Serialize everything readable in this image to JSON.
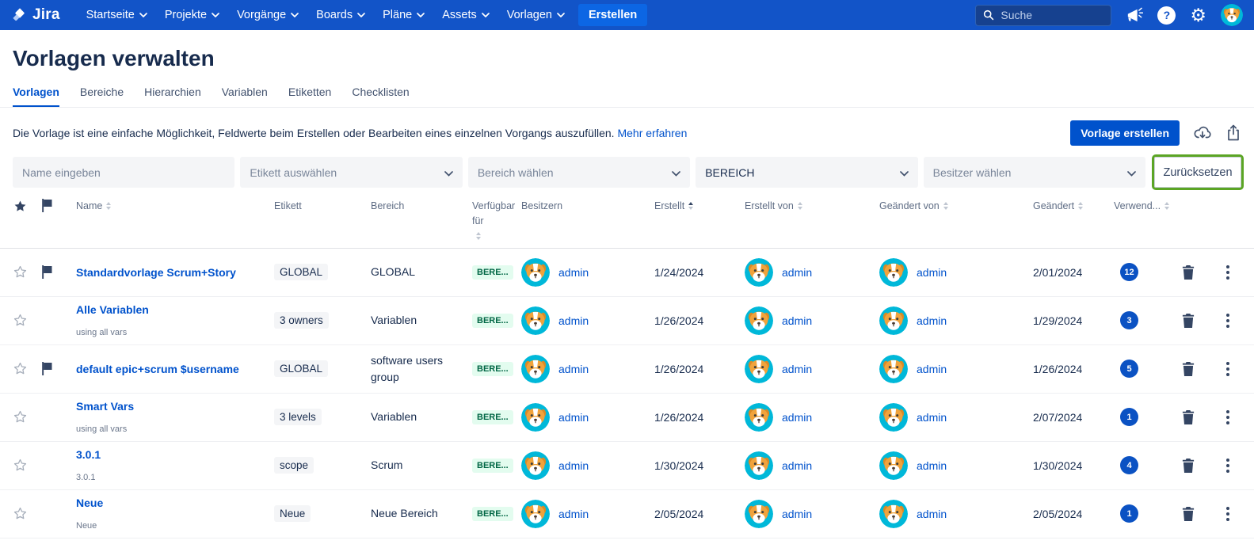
{
  "navbar": {
    "brand": "Jira",
    "items": [
      {
        "id": "startseite",
        "label": "Startseite"
      },
      {
        "id": "projekte",
        "label": "Projekte"
      },
      {
        "id": "vorgaenge",
        "label": "Vorgänge"
      },
      {
        "id": "boards",
        "label": "Boards"
      },
      {
        "id": "plaene",
        "label": "Pläne"
      },
      {
        "id": "assets",
        "label": "Assets"
      },
      {
        "id": "vorlagen",
        "label": "Vorlagen"
      }
    ],
    "create_label": "Erstellen",
    "search_placeholder": "Suche",
    "help_glyph": "?",
    "gear_glyph": "⚙"
  },
  "page": {
    "title": "Vorlagen verwalten",
    "tabs": [
      {
        "id": "vorlagen",
        "label": "Vorlagen",
        "active": true
      },
      {
        "id": "bereiche",
        "label": "Bereiche",
        "active": false
      },
      {
        "id": "hierarchien",
        "label": "Hierarchien",
        "active": false
      },
      {
        "id": "variablen",
        "label": "Variablen",
        "active": false
      },
      {
        "id": "etiketten",
        "label": "Etiketten",
        "active": false
      },
      {
        "id": "checklisten",
        "label": "Checklisten",
        "active": false
      }
    ],
    "description": "Die Vorlage ist eine einfache Möglichkeit, Feldwerte beim Erstellen oder Bearbeiten eines einzelnen Vorgangs auszufüllen.",
    "learn_more": "Mehr erfahren",
    "create_template_button": "Vorlage erstellen"
  },
  "filters": {
    "name_placeholder": "Name eingeben",
    "label_select": "Etikett auswählen",
    "area_select": "Bereich wählen",
    "scope_select": "BEREICH",
    "owner_select": "Besitzer wählen",
    "reset_button": "Zurücksetzen"
  },
  "table": {
    "columns": [
      {
        "id": "name",
        "label": "Name",
        "sortable": true,
        "sorted": ""
      },
      {
        "id": "etikett",
        "label": "Etikett",
        "sortable": false,
        "sorted": ""
      },
      {
        "id": "bereich",
        "label": "Bereich",
        "sortable": false,
        "sorted": ""
      },
      {
        "id": "verfuegbar",
        "label": "Verfügbar für",
        "sortable": true,
        "sorted": ""
      },
      {
        "id": "besitzern",
        "label": "Besitzern",
        "sortable": false,
        "sorted": ""
      },
      {
        "id": "erstellt",
        "label": "Erstellt",
        "sortable": true,
        "sorted": "asc"
      },
      {
        "id": "erstellt_von",
        "label": "Erstellt von",
        "sortable": true,
        "sorted": ""
      },
      {
        "id": "geaendert_von",
        "label": "Geändert von",
        "sortable": true,
        "sorted": ""
      },
      {
        "id": "geaendert",
        "label": "Geändert",
        "sortable": true,
        "sorted": ""
      },
      {
        "id": "verwendungen",
        "label": "Verwend...",
        "sortable": true,
        "sorted": ""
      }
    ],
    "rows": [
      {
        "starred": false,
        "flagged": true,
        "name": "Standardvorlage Scrum+Story",
        "subtitle": "",
        "etikett": "GLOBAL",
        "bereich": "GLOBAL",
        "verfuegbar": "BERE...",
        "besitzer": "admin",
        "erstellt": "1/24/2024",
        "erstellt_von": "admin",
        "geaendert_von": "admin",
        "geaendert": "2/01/2024",
        "verwendungen": "12"
      },
      {
        "starred": false,
        "flagged": false,
        "name": "Alle Variablen",
        "subtitle": "using all vars",
        "etikett": "3 owners",
        "bereich": "Variablen",
        "verfuegbar": "BERE...",
        "besitzer": "admin",
        "erstellt": "1/26/2024",
        "erstellt_von": "admin",
        "geaendert_von": "admin",
        "geaendert": "1/29/2024",
        "verwendungen": "3"
      },
      {
        "starred": false,
        "flagged": true,
        "name": "default epic+scrum $username",
        "subtitle": "",
        "etikett": "GLOBAL",
        "bereich": "software users group",
        "verfuegbar": "BERE...",
        "besitzer": "admin",
        "erstellt": "1/26/2024",
        "erstellt_von": "admin",
        "geaendert_von": "admin",
        "geaendert": "1/26/2024",
        "verwendungen": "5"
      },
      {
        "starred": false,
        "flagged": false,
        "name": "Smart Vars",
        "subtitle": "using all vars",
        "etikett": "3 levels",
        "bereich": "Variablen",
        "verfuegbar": "BERE...",
        "besitzer": "admin",
        "erstellt": "1/26/2024",
        "erstellt_von": "admin",
        "geaendert_von": "admin",
        "geaendert": "2/07/2024",
        "verwendungen": "1"
      },
      {
        "starred": false,
        "flagged": false,
        "name": "3.0.1",
        "subtitle": "3.0.1",
        "etikett": "scope",
        "bereich": "Scrum",
        "verfuegbar": "BERE...",
        "besitzer": "admin",
        "erstellt": "1/30/2024",
        "erstellt_von": "admin",
        "geaendert_von": "admin",
        "geaendert": "1/30/2024",
        "verwendungen": "4"
      },
      {
        "starred": false,
        "flagged": false,
        "name": "Neue",
        "subtitle": "Neue",
        "etikett": "Neue",
        "bereich": "Neue Bereich",
        "verfuegbar": "BERE...",
        "besitzer": "admin",
        "erstellt": "2/05/2024",
        "erstellt_von": "admin",
        "geaendert_von": "admin",
        "geaendert": "2/05/2024",
        "verwendungen": "1"
      }
    ]
  },
  "colors": {
    "navbar_bg": "#1254C8",
    "accent_blue": "#0052CC",
    "create_button_bg": "#0C66E4",
    "highlight_green": "#5BA524",
    "green_badge_bg": "#E3FCEF",
    "green_badge_text": "#006644",
    "count_badge_bg": "#0B52C3",
    "avatar_teal": "#00B8D9"
  }
}
